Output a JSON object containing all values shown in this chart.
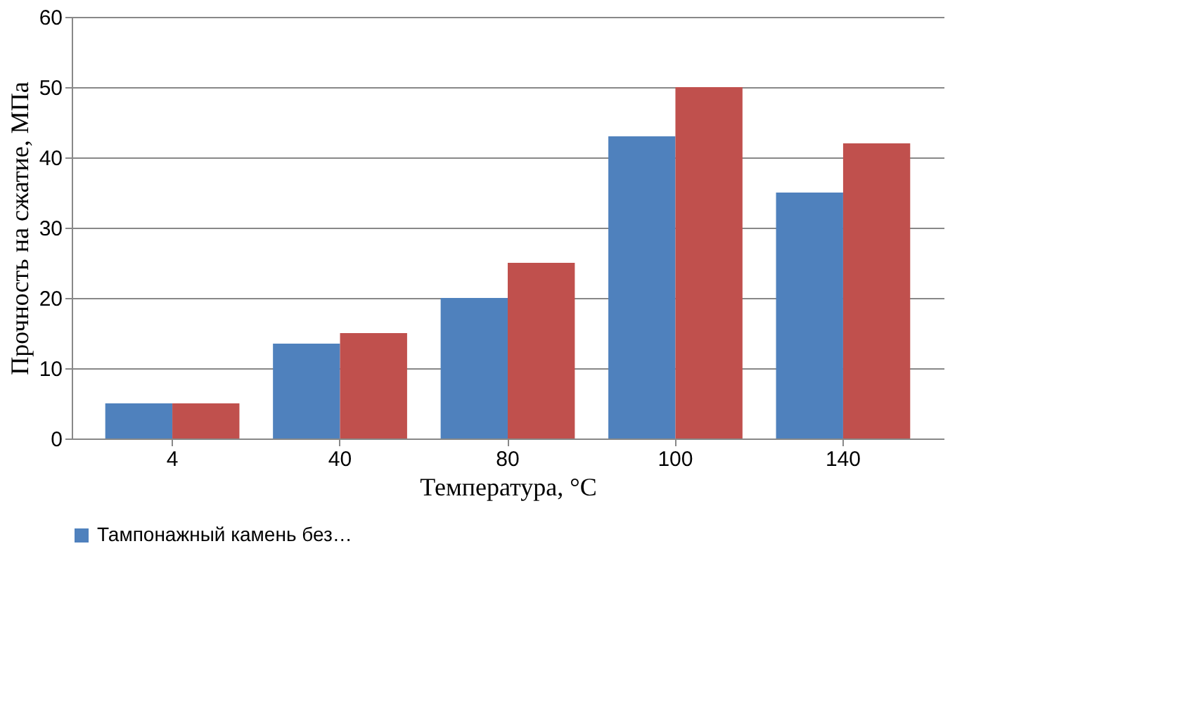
{
  "chart_data": {
    "type": "bar",
    "xlabel": "Температура, °C",
    "ylabel": "Прочность на сжатие, МПа",
    "categories": [
      "4",
      "40",
      "80",
      "100",
      "140"
    ],
    "series": [
      {
        "name": "Тампонажный камень без…",
        "color": "#4f81bd",
        "values": [
          5,
          13.5,
          20,
          43,
          35
        ]
      },
      {
        "color": "#c0504d",
        "values": [
          5,
          15,
          25,
          50,
          42
        ]
      }
    ],
    "ylim": [
      0,
      60
    ],
    "yticks": [
      0,
      10,
      20,
      30,
      40,
      50,
      60
    ],
    "grid": "y",
    "legend": "bottom"
  }
}
